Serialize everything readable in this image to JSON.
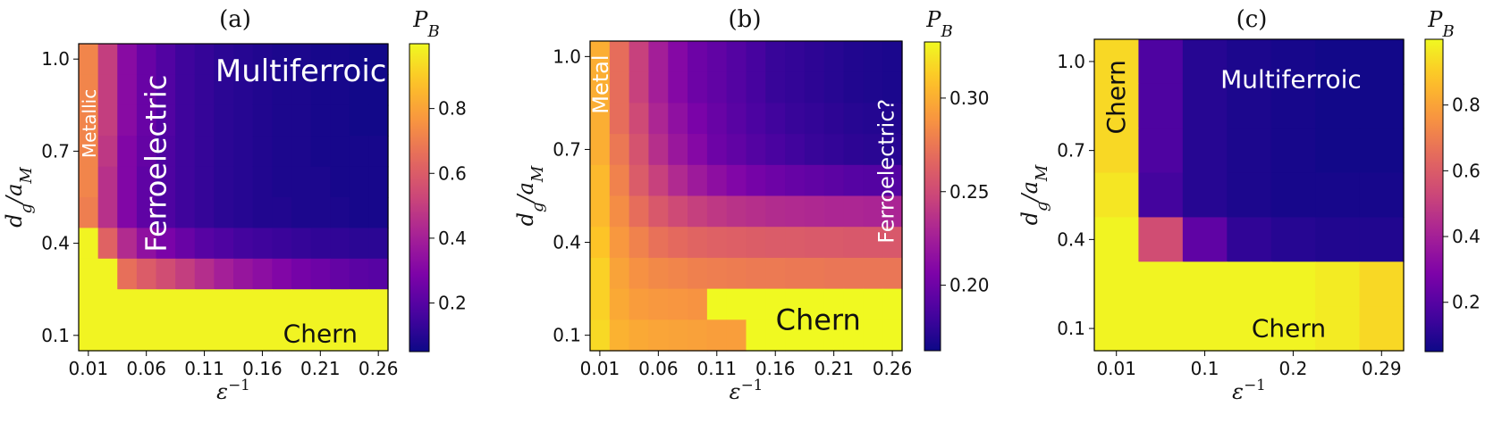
{
  "chart_data": [
    {
      "type": "heatmap",
      "title": "(a)",
      "xlabel": "ε⁻¹",
      "ylabel": "d_g/a_M",
      "xticks": [
        "0.01",
        "0.06",
        "0.11",
        "0.16",
        "0.21",
        "0.26"
      ],
      "yticks": [
        "1.0",
        "0.7",
        "0.4",
        "0.1"
      ],
      "colorbar": {
        "label": "P_B",
        "min": 0.05,
        "max": 1.0,
        "ticks": [
          "0.2",
          "0.4",
          "0.6",
          "0.8"
        ],
        "tick_values": [
          0.2,
          0.4,
          0.6,
          0.8
        ]
      },
      "nx": 16,
      "ny": 10,
      "rows_top_to_bottom": [
        [
          0.72,
          0.5,
          0.32,
          0.24,
          0.19,
          0.15,
          0.13,
          0.11,
          0.1,
          0.09,
          0.08,
          0.08,
          0.07,
          0.07,
          0.06,
          0.06
        ],
        [
          0.72,
          0.5,
          0.32,
          0.24,
          0.19,
          0.15,
          0.13,
          0.11,
          0.1,
          0.09,
          0.08,
          0.08,
          0.07,
          0.07,
          0.06,
          0.06
        ],
        [
          0.72,
          0.5,
          0.32,
          0.24,
          0.19,
          0.15,
          0.13,
          0.11,
          0.1,
          0.09,
          0.08,
          0.08,
          0.07,
          0.07,
          0.06,
          0.06
        ],
        [
          0.72,
          0.48,
          0.3,
          0.23,
          0.18,
          0.15,
          0.13,
          0.11,
          0.1,
          0.09,
          0.08,
          0.08,
          0.07,
          0.07,
          0.07,
          0.07
        ],
        [
          0.72,
          0.46,
          0.3,
          0.22,
          0.18,
          0.15,
          0.13,
          0.11,
          0.1,
          0.09,
          0.08,
          0.08,
          0.08,
          0.07,
          0.07,
          0.07
        ],
        [
          0.7,
          0.46,
          0.3,
          0.22,
          0.18,
          0.15,
          0.13,
          0.11,
          0.1,
          0.09,
          0.09,
          0.08,
          0.08,
          0.08,
          0.07,
          0.07
        ],
        [
          0.99,
          0.62,
          0.44,
          0.34,
          0.28,
          0.24,
          0.2,
          0.18,
          0.16,
          0.15,
          0.14,
          0.13,
          0.12,
          0.12,
          0.11,
          0.11
        ],
        [
          0.99,
          0.99,
          0.66,
          0.6,
          0.55,
          0.5,
          0.45,
          0.4,
          0.36,
          0.33,
          0.3,
          0.27,
          0.25,
          0.23,
          0.21,
          0.2
        ],
        [
          0.99,
          0.99,
          0.99,
          0.99,
          0.99,
          0.99,
          0.99,
          0.99,
          0.99,
          0.99,
          0.99,
          0.99,
          0.99,
          0.99,
          0.99,
          0.99
        ],
        [
          0.99,
          0.99,
          0.99,
          0.99,
          0.99,
          0.99,
          0.99,
          0.99,
          0.99,
          0.99,
          0.99,
          0.99,
          0.99,
          0.99,
          0.99,
          0.99
        ]
      ],
      "annotations": [
        {
          "text": "Metallic",
          "rotate": -90,
          "size": 20,
          "color": "white",
          "x": 0.55,
          "y": 7.4
        },
        {
          "text": "Ferroelectric",
          "rotate": -90,
          "size": 32,
          "color": "white",
          "x": 4.0,
          "y": 6.1
        },
        {
          "text": "Multiferroic",
          "rotate": 0,
          "size": 34,
          "color": "white",
          "x": 11.5,
          "y": 9.1
        },
        {
          "text": "Chern",
          "rotate": 0,
          "size": 28,
          "color": "black",
          "x": 12.5,
          "y": 0.55
        }
      ]
    },
    {
      "type": "heatmap",
      "title": "(b)",
      "xlabel": "ε⁻¹",
      "ylabel": "d_g/a_M",
      "xticks": [
        "0.01",
        "0.06",
        "0.11",
        "0.16",
        "0.21",
        "0.26"
      ],
      "yticks": [
        "1.0",
        "0.7",
        "0.4",
        "0.1"
      ],
      "colorbar": {
        "label": "P_B",
        "min": 0.165,
        "max": 0.33,
        "ticks": [
          "0.20",
          "0.25",
          "0.30"
        ],
        "tick_values": [
          0.2,
          0.25,
          0.3
        ]
      },
      "nx": 16,
      "ny": 10,
      "rows_top_to_bottom": [
        [
          0.3,
          0.27,
          0.245,
          0.225,
          0.21,
          0.2,
          0.195,
          0.19,
          0.185,
          0.18,
          0.178,
          0.176,
          0.174,
          0.172,
          0.171,
          0.17
        ],
        [
          0.3,
          0.27,
          0.245,
          0.225,
          0.21,
          0.2,
          0.195,
          0.19,
          0.185,
          0.18,
          0.178,
          0.176,
          0.174,
          0.172,
          0.171,
          0.17
        ],
        [
          0.3,
          0.27,
          0.25,
          0.23,
          0.215,
          0.205,
          0.198,
          0.192,
          0.187,
          0.183,
          0.18,
          0.178,
          0.176,
          0.174,
          0.173,
          0.172
        ],
        [
          0.3,
          0.275,
          0.255,
          0.235,
          0.22,
          0.21,
          0.2,
          0.195,
          0.19,
          0.186,
          0.183,
          0.18,
          0.178,
          0.176,
          0.175,
          0.174
        ],
        [
          0.305,
          0.28,
          0.26,
          0.245,
          0.232,
          0.222,
          0.214,
          0.208,
          0.203,
          0.2,
          0.197,
          0.195,
          0.193,
          0.191,
          0.19,
          0.19
        ],
        [
          0.305,
          0.285,
          0.27,
          0.258,
          0.25,
          0.244,
          0.24,
          0.237,
          0.235,
          0.233,
          0.232,
          0.231,
          0.23,
          0.23,
          0.229,
          0.229
        ],
        [
          0.31,
          0.29,
          0.28,
          0.272,
          0.268,
          0.265,
          0.263,
          0.262,
          0.261,
          0.26,
          0.26,
          0.259,
          0.259,
          0.258,
          0.258,
          0.258
        ],
        [
          0.315,
          0.295,
          0.287,
          0.283,
          0.281,
          0.279,
          0.278,
          0.277,
          0.276,
          0.276,
          0.275,
          0.275,
          0.274,
          0.274,
          0.274,
          0.274
        ],
        [
          0.315,
          0.298,
          0.292,
          0.29,
          0.289,
          0.288,
          0.33,
          0.33,
          0.33,
          0.33,
          0.33,
          0.33,
          0.33,
          0.33,
          0.33,
          0.33
        ],
        [
          0.318,
          0.302,
          0.298,
          0.296,
          0.295,
          0.294,
          0.293,
          0.293,
          0.33,
          0.33,
          0.33,
          0.33,
          0.33,
          0.33,
          0.33,
          0.33
        ]
      ],
      "annotations": [
        {
          "text": "Metal",
          "rotate": -90,
          "size": 24,
          "color": "white",
          "x": 0.55,
          "y": 8.6
        },
        {
          "text": "Ferroelectric?",
          "rotate": -90,
          "size": 24,
          "color": "white",
          "x": 15.2,
          "y": 5.8
        },
        {
          "text": "Chern",
          "rotate": 0,
          "size": 32,
          "color": "black",
          "x": 11.7,
          "y": 1.0
        }
      ]
    },
    {
      "type": "heatmap",
      "title": "(c)",
      "xlabel": "ε⁻¹",
      "ylabel": "d_g/a_M",
      "xticks": [
        "0.01",
        "0.1",
        "0.2",
        "0.29"
      ],
      "yticks": [
        "1.0",
        "0.7",
        "0.4",
        "0.1"
      ],
      "colorbar": {
        "label": "P_B",
        "min": 0.05,
        "max": 1.0,
        "ticks": [
          "0.2",
          "0.4",
          "0.6",
          "0.8"
        ],
        "tick_values": [
          0.2,
          0.4,
          0.6,
          0.8
        ]
      },
      "nx": 7,
      "ny": 7,
      "rows_top_to_bottom": [
        [
          0.93,
          0.18,
          0.1,
          0.08,
          0.07,
          0.06,
          0.06
        ],
        [
          0.93,
          0.18,
          0.1,
          0.08,
          0.07,
          0.06,
          0.06
        ],
        [
          0.93,
          0.18,
          0.1,
          0.08,
          0.07,
          0.06,
          0.06
        ],
        [
          0.96,
          0.16,
          0.1,
          0.08,
          0.07,
          0.07,
          0.07
        ],
        [
          0.99,
          0.55,
          0.22,
          0.12,
          0.1,
          0.09,
          0.09
        ],
        [
          0.99,
          0.99,
          0.99,
          0.99,
          0.99,
          0.97,
          0.93
        ],
        [
          0.99,
          0.99,
          0.99,
          0.99,
          0.99,
          0.97,
          0.93
        ]
      ],
      "annotations": [
        {
          "text": "Chern",
          "rotate": -90,
          "size": 28,
          "color": "black",
          "x": 0.5,
          "y": 5.7
        },
        {
          "text": "Multiferroic",
          "rotate": 0,
          "size": 28,
          "color": "white",
          "x": 4.45,
          "y": 6.1
        },
        {
          "text": "Chern",
          "rotate": 0,
          "size": 28,
          "color": "black",
          "x": 4.4,
          "y": 0.5
        }
      ]
    }
  ]
}
